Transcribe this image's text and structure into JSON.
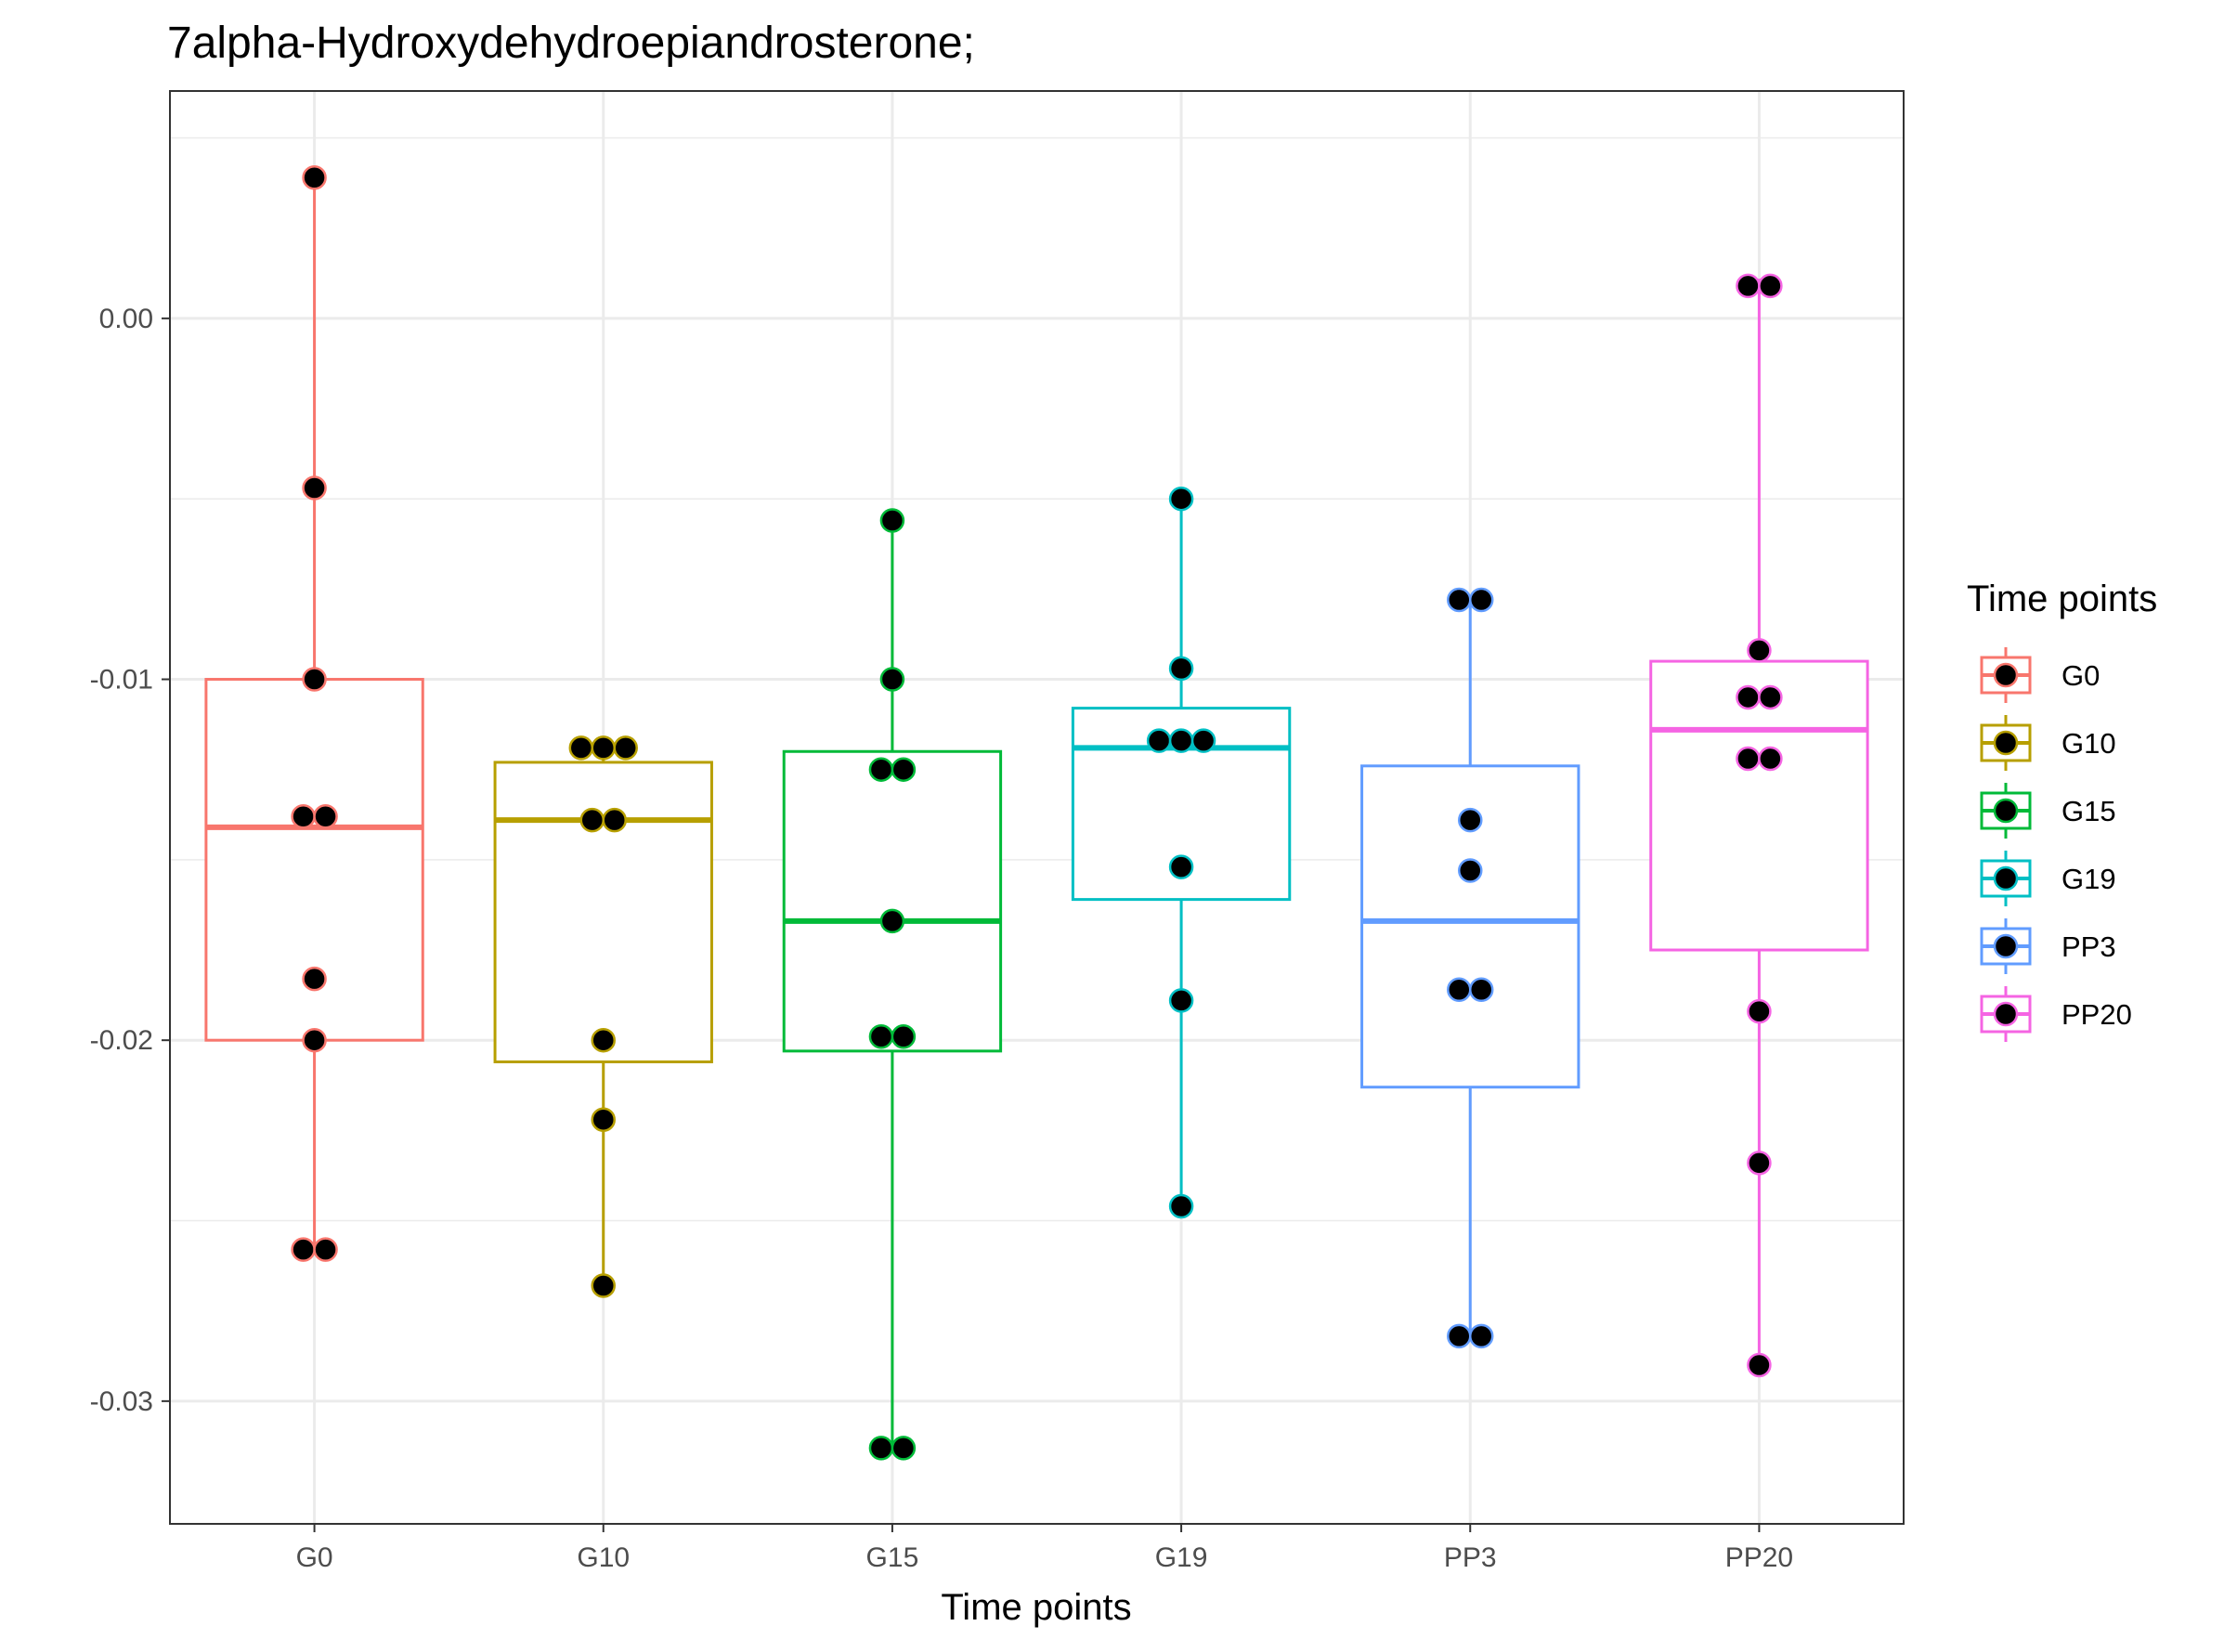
{
  "chart_data": {
    "type": "box",
    "title": "7alpha-Hydroxydehydroepiandrosterone;",
    "xlabel": "Time points",
    "ylabel": "",
    "categories": [
      "G0",
      "G10",
      "G15",
      "G19",
      "PP3",
      "PP20"
    ],
    "ylim": [
      -0.0334,
      0.0063
    ],
    "yticks": [
      0.0,
      -0.01,
      -0.02,
      -0.03
    ],
    "ytick_labels": [
      "0.00",
      "-0.01",
      "-0.02",
      "-0.03"
    ],
    "grid": true,
    "legend": {
      "title": "Time points",
      "placement": "right",
      "entries": [
        "G0",
        "G10",
        "G15",
        "G19",
        "PP3",
        "PP20"
      ]
    },
    "colors": {
      "G0": "#F8766D",
      "G10": "#B79F00",
      "G15": "#00BA38",
      "G19": "#00BFC4",
      "PP3": "#619CFF",
      "PP20": "#F564E3",
      "point_fill": "#000000",
      "grid": "#ebebeb",
      "panel_border": "#333333"
    },
    "series": [
      {
        "name": "G0",
        "box": {
          "whisker_low": -0.0258,
          "q1": -0.02,
          "median": -0.0141,
          "q3": -0.01,
          "whisker_high": 0.0039
        },
        "points": [
          0.0039,
          -0.0047,
          -0.01,
          -0.0138,
          -0.0138,
          -0.0183,
          -0.02,
          -0.0258,
          -0.0258
        ]
      },
      {
        "name": "G10",
        "box": {
          "whisker_low": -0.0268,
          "q1": -0.0206,
          "median": -0.0139,
          "q3": -0.0123,
          "whisker_high": -0.0116
        },
        "points": [
          -0.0119,
          -0.0119,
          -0.0119,
          -0.0139,
          -0.0139,
          -0.02,
          -0.0222,
          -0.0268
        ]
      },
      {
        "name": "G15",
        "box": {
          "whisker_low": -0.0313,
          "q1": -0.0203,
          "median": -0.0167,
          "q3": -0.012,
          "whisker_high": -0.0056
        },
        "points": [
          -0.0056,
          -0.01,
          -0.0125,
          -0.0125,
          -0.0167,
          -0.0199,
          -0.0199,
          -0.0313,
          -0.0313
        ]
      },
      {
        "name": "G19",
        "box": {
          "whisker_low": -0.0246,
          "q1": -0.0161,
          "median": -0.0119,
          "q3": -0.0108,
          "whisker_high": -0.005
        },
        "points": [
          -0.005,
          -0.0097,
          -0.0117,
          -0.0117,
          -0.0117,
          -0.0152,
          -0.0189,
          -0.0246
        ]
      },
      {
        "name": "PP3",
        "box": {
          "whisker_low": -0.0282,
          "q1": -0.0213,
          "median": -0.0167,
          "q3": -0.0124,
          "whisker_high": -0.0078
        },
        "points": [
          -0.0078,
          -0.0078,
          -0.0139,
          -0.0153,
          -0.0186,
          -0.0186,
          -0.0282,
          -0.0282
        ]
      },
      {
        "name": "PP20",
        "box": {
          "whisker_low": -0.029,
          "q1": -0.0175,
          "median": -0.0114,
          "q3": -0.0095,
          "whisker_high": 0.0011
        },
        "points": [
          0.0009,
          0.0009,
          -0.0092,
          -0.0105,
          -0.0105,
          -0.0122,
          -0.0122,
          -0.0192,
          -0.0234,
          -0.029
        ]
      }
    ]
  }
}
